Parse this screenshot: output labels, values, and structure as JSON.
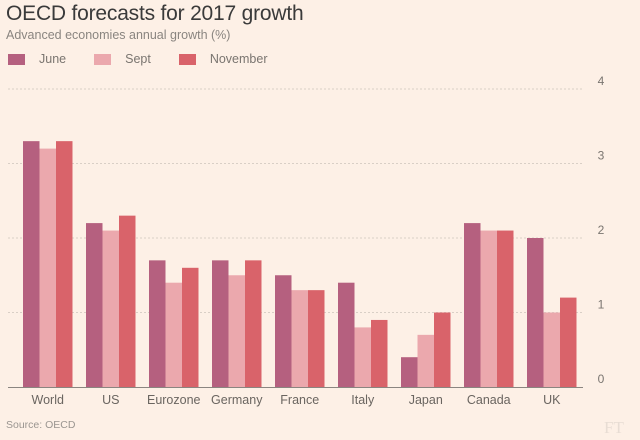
{
  "chart_data": {
    "type": "bar",
    "title": "OECD forecasts for 2017 growth",
    "subtitle": "Advanced economies annual growth (%)",
    "xlabel": "",
    "ylabel": "",
    "ylim": [
      0,
      4
    ],
    "yticks": [
      0,
      1,
      2,
      3,
      4
    ],
    "grid": true,
    "legend_position": "top-left",
    "categories": [
      "World",
      "US",
      "Eurozone",
      "Germany",
      "France",
      "Italy",
      "Japan",
      "Canada",
      "UK"
    ],
    "series": [
      {
        "name": "June",
        "color": "#b5607f",
        "values": [
          3.3,
          2.2,
          1.7,
          1.7,
          1.5,
          1.4,
          0.4,
          2.2,
          2.0
        ]
      },
      {
        "name": "Sept",
        "color": "#eba8ad",
        "values": [
          3.2,
          2.1,
          1.4,
          1.5,
          1.3,
          0.8,
          0.7,
          2.1,
          1.0
        ]
      },
      {
        "name": "November",
        "color": "#d9636a",
        "values": [
          3.3,
          2.3,
          1.6,
          1.7,
          1.3,
          0.9,
          1.0,
          2.1,
          1.2
        ]
      }
    ],
    "source": "Source: OECD",
    "watermark": "FT"
  }
}
